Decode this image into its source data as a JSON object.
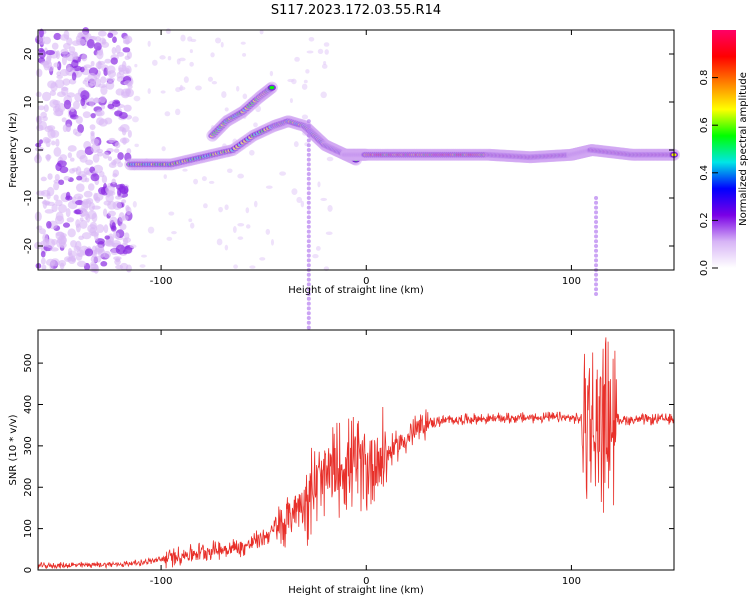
{
  "title": "S117.2023.172.03.55.R14",
  "chart_data": [
    {
      "type": "heatmap",
      "xlabel": "Height of straight line (km)",
      "ylabel": "Frequency (Hz)",
      "xlim": [
        -160,
        150
      ],
      "ylim": [
        -25,
        25
      ],
      "x_ticks": [
        -100,
        0,
        100
      ],
      "y_ticks": [
        -20,
        -10,
        0,
        10,
        20
      ],
      "colorbar": {
        "label": "Normalized spectral amplitude",
        "range": [
          0,
          1
        ],
        "ticks": [
          "0.0",
          "0.2",
          "0.4",
          "0.6",
          "0.8"
        ],
        "colormap": [
          "#ffffff",
          "#d7b4f6",
          "#7a00e6",
          "#0000ff",
          "#00e6e6",
          "#00ff00",
          "#ffff00",
          "#ff8000",
          "#ff0000",
          "#ff0066"
        ]
      },
      "features": [
        {
          "x": [
            -115,
            -105,
            -95,
            -85,
            -75,
            -65,
            -55,
            -45,
            -38,
            -30,
            -25,
            -20,
            -15,
            -10,
            -5
          ],
          "y": [
            -3,
            -3,
            -3,
            -2,
            -1,
            0,
            3,
            5,
            6,
            5,
            3,
            1,
            0,
            -1,
            -2
          ]
        },
        {
          "x": [
            -75,
            -68,
            -60,
            -52,
            -46
          ],
          "y": [
            3,
            6,
            8,
            11,
            13
          ]
        },
        {
          "x": [
            -10,
            0,
            30,
            60,
            80,
            100,
            110,
            130,
            150
          ],
          "y": [
            -1,
            -1,
            -1,
            -1,
            -1.5,
            -1,
            0,
            -1,
            -1
          ]
        }
      ]
    },
    {
      "type": "line",
      "xlabel": "Height of straight line (km)",
      "ylabel": "SNR (10 * v/v)",
      "xlim": [
        -160,
        150
      ],
      "ylim": [
        0,
        580
      ],
      "x_ticks": [
        -100,
        0,
        100
      ],
      "y_ticks": [
        0,
        100,
        200,
        300,
        400,
        500
      ],
      "color": "#e8302a",
      "series": [
        {
          "x": [
            -160,
            -140,
            -120,
            -110,
            -100,
            -90,
            -80,
            -70,
            -60,
            -50,
            -40,
            -35,
            -30,
            -25,
            -20,
            -15,
            -10,
            -5,
            0,
            5,
            10,
            15,
            20,
            25,
            30,
            40,
            50,
            60,
            70,
            80,
            90,
            100,
            105,
            110,
            112,
            114,
            116,
            118,
            120,
            130,
            140,
            150
          ],
          "y": [
            10,
            12,
            14,
            18,
            25,
            35,
            45,
            50,
            55,
            80,
            110,
            150,
            170,
            200,
            220,
            240,
            255,
            260,
            250,
            265,
            280,
            300,
            320,
            340,
            355,
            362,
            365,
            366,
            367,
            368,
            369,
            367,
            365,
            360,
            300,
            380,
            350,
            360,
            365,
            363,
            364,
            365
          ]
        }
      ]
    }
  ]
}
